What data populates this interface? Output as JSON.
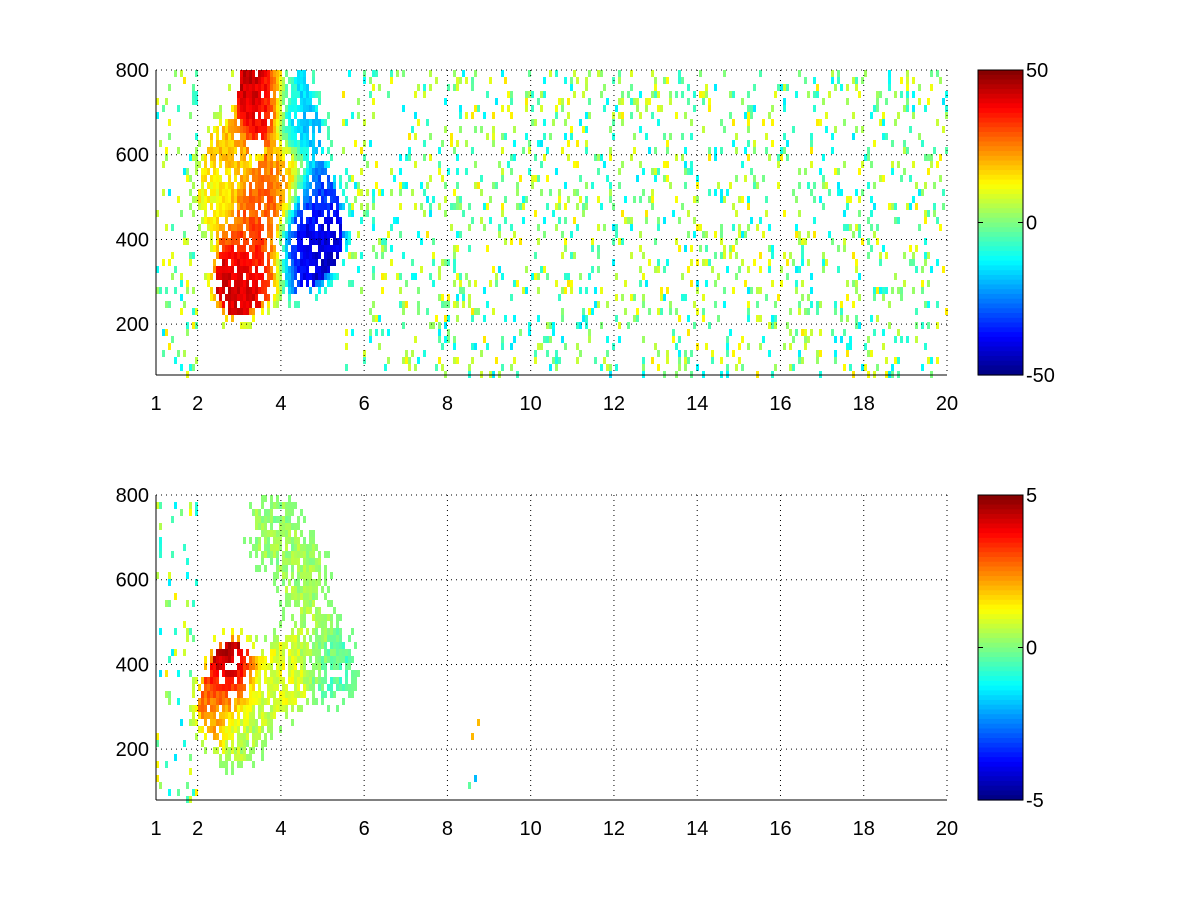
{
  "chart_data": [
    {
      "type": "heatmap",
      "title": "",
      "xlabel": "",
      "ylabel": "",
      "xlim": [
        1,
        20
      ],
      "ylim": [
        80,
        800
      ],
      "xticks": [
        1,
        2,
        4,
        6,
        8,
        10,
        12,
        14,
        16,
        18,
        20
      ],
      "yticks": [
        200,
        400,
        600,
        800
      ],
      "grid": true,
      "colormap": "jet",
      "colorbar": {
        "min": -50,
        "max": 50,
        "ticks": [
          50,
          0,
          -50
        ]
      },
      "blobs": [
        {
          "x": 2.9,
          "y": 300,
          "value": 42
        },
        {
          "x": 3.3,
          "y": 330,
          "value": 38
        },
        {
          "x": 3.7,
          "y": 360,
          "value": 35
        },
        {
          "x": 3.1,
          "y": 420,
          "value": 30
        },
        {
          "x": 3.6,
          "y": 480,
          "value": 28
        },
        {
          "x": 4.1,
          "y": 560,
          "value": 25
        },
        {
          "x": 3.5,
          "y": 720,
          "value": 40
        },
        {
          "x": 3.6,
          "y": 780,
          "value": 45
        },
        {
          "x": 2.7,
          "y": 600,
          "value": 18
        },
        {
          "x": 2.5,
          "y": 500,
          "value": 12
        },
        {
          "x": 4.3,
          "y": 360,
          "value": -35
        },
        {
          "x": 4.7,
          "y": 380,
          "value": -45
        },
        {
          "x": 5.0,
          "y": 420,
          "value": -40
        },
        {
          "x": 4.8,
          "y": 500,
          "value": -30
        },
        {
          "x": 4.5,
          "y": 650,
          "value": -20
        },
        {
          "x": 4.2,
          "y": 760,
          "value": -15
        }
      ],
      "background_scatter": {
        "x_range": [
          5.5,
          20
        ],
        "value_range": [
          -15,
          15
        ]
      }
    },
    {
      "type": "heatmap",
      "title": "",
      "xlabel": "",
      "ylabel": "",
      "xlim": [
        1,
        20
      ],
      "ylim": [
        80,
        800
      ],
      "xticks": [
        1,
        2,
        4,
        6,
        8,
        10,
        12,
        14,
        16,
        18,
        20
      ],
      "yticks": [
        200,
        400,
        600,
        800
      ],
      "grid": true,
      "colormap": "jet",
      "colorbar": {
        "min": -5,
        "max": 5,
        "ticks": [
          5,
          0,
          -5
        ]
      },
      "blobs": [
        {
          "x": 2.8,
          "y": 380,
          "value": 4.5
        },
        {
          "x": 2.5,
          "y": 300,
          "value": 2.5
        },
        {
          "x": 3.5,
          "y": 330,
          "value": 0.8
        },
        {
          "x": 4.2,
          "y": 380,
          "value": 1.0
        },
        {
          "x": 4.8,
          "y": 450,
          "value": 0.5
        },
        {
          "x": 4.5,
          "y": 620,
          "value": 0.3
        },
        {
          "x": 3.8,
          "y": 720,
          "value": 0.2
        },
        {
          "x": 3.0,
          "y": 250,
          "value": 0.4
        },
        {
          "x": 5.2,
          "y": 400,
          "value": -0.5
        }
      ],
      "background_scatter": {
        "x_range": [
          8.5,
          8.8
        ],
        "value_range": [
          -2,
          2
        ]
      }
    }
  ]
}
